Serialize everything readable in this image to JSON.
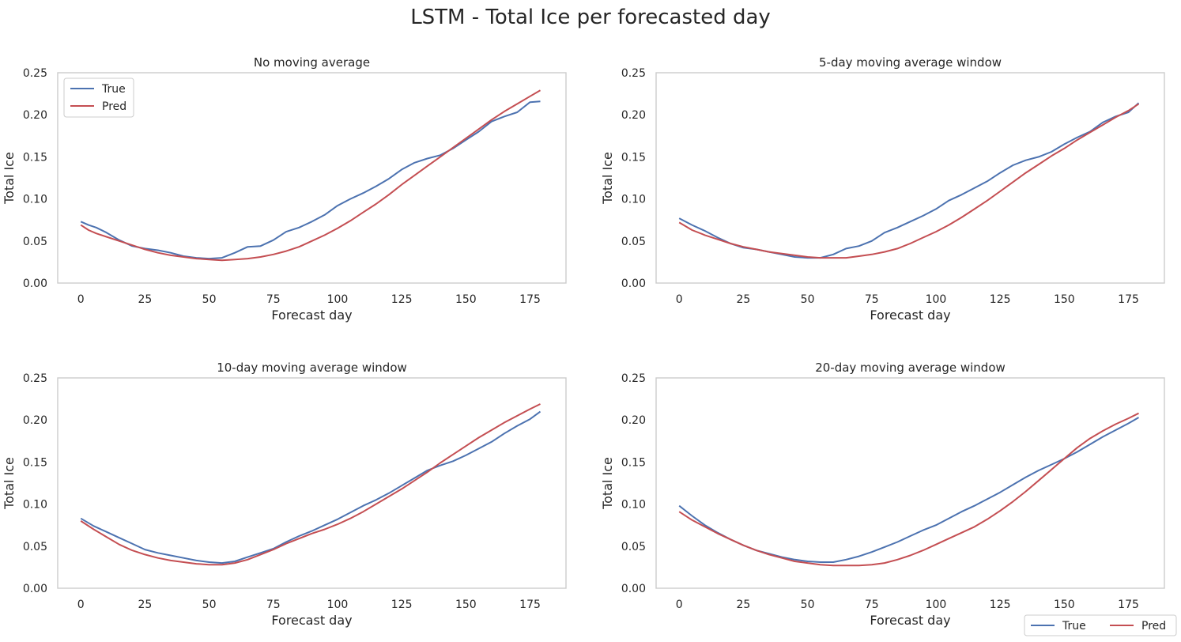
{
  "figure": {
    "suptitle": "LSTM - Total Ice per forecasted day",
    "series_colors": {
      "True": "#4c72b0",
      "Pred": "#c44e52"
    },
    "figure_legend": {
      "entries": [
        "True",
        "Pred"
      ],
      "placement": "bottom-right"
    }
  },
  "chart_data": [
    {
      "type": "line",
      "title": "No moving average",
      "xlabel": "Forecast day",
      "ylabel": "Total Ice",
      "xlim": [
        -9,
        189
      ],
      "ylim": [
        0,
        0.25
      ],
      "xticks": [
        0,
        25,
        50,
        75,
        100,
        125,
        150,
        175
      ],
      "yticks": [
        0.0,
        0.05,
        0.1,
        0.15,
        0.2,
        0.25
      ],
      "grid": false,
      "legend": {
        "placement": "top-left",
        "entries": [
          "True",
          "Pred"
        ]
      },
      "series": [
        {
          "name": "True",
          "color": "#4c72b0",
          "x": [
            0,
            3,
            6,
            10,
            15,
            20,
            25,
            30,
            35,
            40,
            45,
            50,
            55,
            60,
            65,
            70,
            75,
            80,
            85,
            90,
            95,
            100,
            105,
            110,
            115,
            120,
            125,
            130,
            135,
            140,
            145,
            150,
            155,
            160,
            165,
            170,
            175,
            179
          ],
          "y": [
            0.073,
            0.069,
            0.066,
            0.06,
            0.051,
            0.044,
            0.041,
            0.039,
            0.036,
            0.032,
            0.03,
            0.029,
            0.03,
            0.036,
            0.043,
            0.044,
            0.051,
            0.061,
            0.066,
            0.073,
            0.081,
            0.092,
            0.1,
            0.107,
            0.115,
            0.124,
            0.135,
            0.143,
            0.148,
            0.152,
            0.16,
            0.17,
            0.18,
            0.192,
            0.198,
            0.203,
            0.215,
            0.216
          ]
        },
        {
          "name": "Pred",
          "color": "#c44e52",
          "x": [
            0,
            3,
            6,
            10,
            15,
            20,
            25,
            30,
            35,
            40,
            45,
            50,
            55,
            60,
            65,
            70,
            75,
            80,
            85,
            90,
            95,
            100,
            105,
            110,
            115,
            120,
            125,
            130,
            135,
            140,
            145,
            150,
            155,
            160,
            165,
            170,
            175,
            179
          ],
          "y": [
            0.069,
            0.063,
            0.059,
            0.055,
            0.05,
            0.045,
            0.04,
            0.036,
            0.033,
            0.031,
            0.029,
            0.028,
            0.027,
            0.028,
            0.029,
            0.031,
            0.034,
            0.038,
            0.043,
            0.05,
            0.057,
            0.065,
            0.074,
            0.084,
            0.094,
            0.105,
            0.117,
            0.128,
            0.139,
            0.15,
            0.161,
            0.172,
            0.183,
            0.194,
            0.204,
            0.213,
            0.222,
            0.229
          ]
        }
      ]
    },
    {
      "type": "line",
      "title": "5-day moving average window",
      "xlabel": "Forecast day",
      "ylabel": "Total Ice",
      "xlim": [
        -9,
        189
      ],
      "ylim": [
        0,
        0.25
      ],
      "xticks": [
        0,
        25,
        50,
        75,
        100,
        125,
        150,
        175
      ],
      "yticks": [
        0.0,
        0.05,
        0.1,
        0.15,
        0.2,
        0.25
      ],
      "grid": false,
      "series": [
        {
          "name": "True",
          "color": "#4c72b0",
          "x": [
            0,
            5,
            10,
            15,
            20,
            25,
            30,
            35,
            40,
            45,
            50,
            55,
            60,
            65,
            70,
            75,
            80,
            85,
            90,
            95,
            100,
            105,
            110,
            115,
            120,
            125,
            130,
            135,
            140,
            145,
            150,
            155,
            160,
            165,
            170,
            175,
            179
          ],
          "y": [
            0.077,
            0.069,
            0.062,
            0.054,
            0.047,
            0.042,
            0.04,
            0.037,
            0.034,
            0.031,
            0.03,
            0.03,
            0.034,
            0.041,
            0.044,
            0.05,
            0.06,
            0.066,
            0.073,
            0.08,
            0.088,
            0.098,
            0.105,
            0.113,
            0.121,
            0.131,
            0.14,
            0.146,
            0.15,
            0.156,
            0.165,
            0.173,
            0.18,
            0.191,
            0.198,
            0.203,
            0.214
          ]
        },
        {
          "name": "Pred",
          "color": "#c44e52",
          "x": [
            0,
            5,
            10,
            15,
            20,
            25,
            30,
            35,
            40,
            45,
            50,
            55,
            60,
            65,
            70,
            75,
            80,
            85,
            90,
            95,
            100,
            105,
            110,
            115,
            120,
            125,
            130,
            135,
            140,
            145,
            150,
            155,
            160,
            165,
            170,
            175,
            179
          ],
          "y": [
            0.072,
            0.063,
            0.057,
            0.052,
            0.047,
            0.043,
            0.04,
            0.037,
            0.035,
            0.033,
            0.031,
            0.03,
            0.03,
            0.03,
            0.032,
            0.034,
            0.037,
            0.041,
            0.047,
            0.054,
            0.061,
            0.069,
            0.078,
            0.088,
            0.098,
            0.109,
            0.12,
            0.131,
            0.141,
            0.151,
            0.16,
            0.17,
            0.179,
            0.188,
            0.197,
            0.205,
            0.213
          ]
        }
      ]
    },
    {
      "type": "line",
      "title": "10-day moving average window",
      "xlabel": "Forecast day",
      "ylabel": "Total Ice",
      "xlim": [
        -9,
        189
      ],
      "ylim": [
        0,
        0.25
      ],
      "xticks": [
        0,
        25,
        50,
        75,
        100,
        125,
        150,
        175
      ],
      "yticks": [
        0.0,
        0.05,
        0.1,
        0.15,
        0.2,
        0.25
      ],
      "grid": false,
      "series": [
        {
          "name": "True",
          "color": "#4c72b0",
          "x": [
            0,
            5,
            10,
            15,
            20,
            25,
            30,
            35,
            40,
            45,
            50,
            55,
            60,
            65,
            70,
            75,
            80,
            85,
            90,
            95,
            100,
            105,
            110,
            115,
            120,
            125,
            130,
            135,
            140,
            145,
            150,
            155,
            160,
            165,
            170,
            175,
            179
          ],
          "y": [
            0.083,
            0.074,
            0.067,
            0.06,
            0.053,
            0.046,
            0.042,
            0.039,
            0.036,
            0.033,
            0.031,
            0.03,
            0.032,
            0.037,
            0.042,
            0.047,
            0.055,
            0.062,
            0.068,
            0.075,
            0.082,
            0.09,
            0.098,
            0.105,
            0.113,
            0.122,
            0.131,
            0.14,
            0.146,
            0.151,
            0.158,
            0.166,
            0.174,
            0.184,
            0.193,
            0.201,
            0.21
          ]
        },
        {
          "name": "Pred",
          "color": "#c44e52",
          "x": [
            0,
            5,
            10,
            15,
            20,
            25,
            30,
            35,
            40,
            45,
            50,
            55,
            60,
            65,
            70,
            75,
            80,
            85,
            90,
            95,
            100,
            105,
            110,
            115,
            120,
            125,
            130,
            135,
            140,
            145,
            150,
            155,
            160,
            165,
            170,
            175,
            179
          ],
          "y": [
            0.08,
            0.07,
            0.061,
            0.052,
            0.045,
            0.04,
            0.036,
            0.033,
            0.031,
            0.029,
            0.028,
            0.028,
            0.03,
            0.034,
            0.04,
            0.046,
            0.053,
            0.059,
            0.065,
            0.07,
            0.076,
            0.083,
            0.091,
            0.1,
            0.109,
            0.118,
            0.128,
            0.138,
            0.149,
            0.159,
            0.169,
            0.179,
            0.188,
            0.197,
            0.205,
            0.213,
            0.219
          ]
        }
      ]
    },
    {
      "type": "line",
      "title": "20-day moving average window",
      "xlabel": "Forecast day",
      "ylabel": "Total Ice",
      "xlim": [
        -9,
        189
      ],
      "ylim": [
        0,
        0.25
      ],
      "xticks": [
        0,
        25,
        50,
        75,
        100,
        125,
        150,
        175
      ],
      "yticks": [
        0.0,
        0.05,
        0.1,
        0.15,
        0.2,
        0.25
      ],
      "grid": false,
      "series": [
        {
          "name": "True",
          "color": "#4c72b0",
          "x": [
            0,
            5,
            10,
            15,
            20,
            25,
            30,
            35,
            40,
            45,
            50,
            55,
            60,
            65,
            70,
            75,
            80,
            85,
            90,
            95,
            100,
            105,
            110,
            115,
            120,
            125,
            130,
            135,
            140,
            145,
            150,
            155,
            160,
            165,
            170,
            175,
            179
          ],
          "y": [
            0.098,
            0.086,
            0.075,
            0.066,
            0.058,
            0.051,
            0.045,
            0.041,
            0.037,
            0.034,
            0.032,
            0.031,
            0.031,
            0.034,
            0.038,
            0.043,
            0.049,
            0.055,
            0.062,
            0.069,
            0.075,
            0.083,
            0.091,
            0.098,
            0.106,
            0.114,
            0.123,
            0.132,
            0.14,
            0.147,
            0.154,
            0.162,
            0.171,
            0.18,
            0.188,
            0.196,
            0.203
          ]
        },
        {
          "name": "Pred",
          "color": "#c44e52",
          "x": [
            0,
            5,
            10,
            15,
            20,
            25,
            30,
            35,
            40,
            45,
            50,
            55,
            60,
            65,
            70,
            75,
            80,
            85,
            90,
            95,
            100,
            105,
            110,
            115,
            120,
            125,
            130,
            135,
            140,
            145,
            150,
            155,
            160,
            165,
            170,
            175,
            179
          ],
          "y": [
            0.091,
            0.081,
            0.073,
            0.065,
            0.058,
            0.051,
            0.045,
            0.04,
            0.036,
            0.032,
            0.03,
            0.028,
            0.027,
            0.027,
            0.027,
            0.028,
            0.03,
            0.034,
            0.039,
            0.045,
            0.052,
            0.059,
            0.066,
            0.073,
            0.082,
            0.092,
            0.103,
            0.115,
            0.128,
            0.141,
            0.154,
            0.167,
            0.178,
            0.187,
            0.195,
            0.202,
            0.208
          ]
        }
      ]
    }
  ]
}
